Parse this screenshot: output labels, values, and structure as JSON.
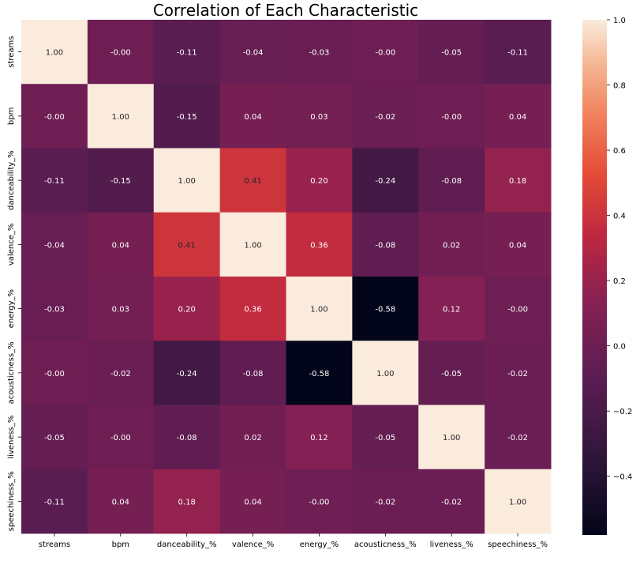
{
  "chart_data": {
    "type": "heatmap",
    "title": "Correlation of Each Characteristic",
    "xlabel": "",
    "ylabel": "",
    "x_categories": [
      "streams",
      "bpm",
      "danceability_%",
      "valence_%",
      "energy_%",
      "acousticness_%",
      "liveness_%",
      "speechiness_%"
    ],
    "y_categories": [
      "streams",
      "bpm",
      "danceability_%",
      "valence_%",
      "energy_%",
      "acousticness_%",
      "liveness_%",
      "speechiness_%"
    ],
    "values": [
      [
        1.0,
        -0.0,
        -0.11,
        -0.04,
        -0.03,
        -0.0,
        -0.05,
        -0.11
      ],
      [
        -0.0,
        1.0,
        -0.15,
        0.04,
        0.03,
        -0.02,
        -0.0,
        0.04
      ],
      [
        -0.11,
        -0.15,
        1.0,
        0.41,
        0.2,
        -0.24,
        -0.08,
        0.18
      ],
      [
        -0.04,
        0.04,
        0.41,
        1.0,
        0.36,
        -0.08,
        0.02,
        0.04
      ],
      [
        -0.03,
        0.03,
        0.2,
        0.36,
        1.0,
        -0.58,
        0.12,
        -0.0
      ],
      [
        -0.0,
        -0.02,
        -0.24,
        -0.08,
        -0.58,
        1.0,
        -0.05,
        -0.02
      ],
      [
        -0.05,
        -0.0,
        -0.08,
        0.02,
        0.12,
        -0.05,
        1.0,
        -0.02
      ],
      [
        -0.11,
        0.04,
        0.18,
        0.04,
        -0.0,
        -0.02,
        -0.02,
        1.0
      ]
    ],
    "colorbar": {
      "range": [
        -0.58,
        1.0
      ],
      "ticks": [
        1.0,
        0.8,
        0.6,
        0.4,
        0.2,
        0.0,
        -0.2,
        -0.4
      ],
      "tick_labels": [
        "1.0",
        "0.8",
        "0.6",
        "0.4",
        "0.2",
        "0.0",
        "−0.2",
        "−0.4"
      ],
      "colormap": "rocket"
    },
    "annotations": "values shown in each cell with two decimals",
    "grid": false,
    "legend": "colorbar-right"
  }
}
